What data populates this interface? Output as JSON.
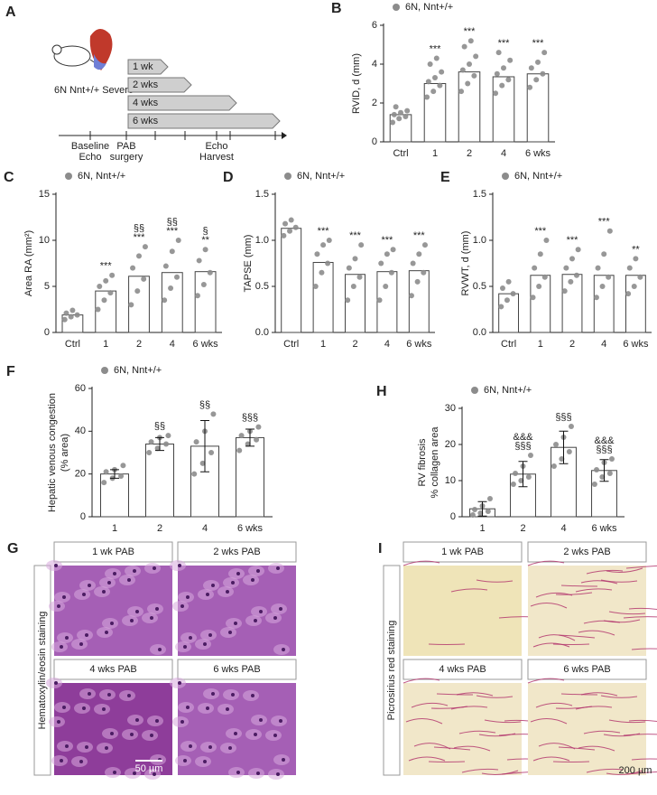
{
  "diagram": {
    "panel": "A",
    "group": "6N Nnt+/+ Severe",
    "durations": [
      "1 wk",
      "2 wks",
      "4 wks",
      "6 wks"
    ],
    "timeline": [
      [
        "Baseline",
        "Echo"
      ],
      [
        "PAB",
        "surgery"
      ],
      [
        "Echo",
        "Harvest"
      ]
    ]
  },
  "chart_data": [
    {
      "type": "bar",
      "panel": "B",
      "legend": "6N, Nnt+/+",
      "ylabel": [
        "RVID, d (mm)"
      ],
      "categories": [
        "Ctrl",
        "1",
        "2",
        "4",
        "6 wks"
      ],
      "values": [
        1.4,
        3.0,
        3.6,
        3.35,
        3.5
      ],
      "points": [
        [
          1.0,
          1.2,
          1.3,
          1.4,
          1.5,
          1.6,
          1.8
        ],
        [
          2.3,
          2.6,
          2.9,
          3.1,
          3.3,
          3.6,
          4.0,
          4.3
        ],
        [
          2.6,
          3.0,
          3.4,
          3.7,
          4.0,
          4.4,
          4.9,
          5.2
        ],
        [
          2.5,
          2.9,
          3.2,
          3.5,
          3.8,
          4.2,
          4.6
        ],
        [
          2.8,
          3.2,
          3.5,
          3.8,
          4.1,
          4.6
        ]
      ],
      "sig": [
        [
          null,
          "***",
          "***",
          "***",
          "***"
        ]
      ],
      "ylim": [
        0,
        6
      ],
      "yticks": [
        0,
        2,
        4,
        6
      ],
      "color": "#8c8c8c"
    },
    {
      "type": "bar",
      "panel": "C",
      "legend": "6N, Nnt+/+",
      "ylabel": [
        "Area RA (mm²)"
      ],
      "categories": [
        "Ctrl",
        "1",
        "2",
        "4",
        "6 wks"
      ],
      "values": [
        1.9,
        4.5,
        6.1,
        6.5,
        6.6
      ],
      "points": [
        [
          1.4,
          1.7,
          1.9,
          2.1,
          2.4
        ],
        [
          2.5,
          3.5,
          4.3,
          5.0,
          5.6,
          6.2
        ],
        [
          3.0,
          4.5,
          5.8,
          7.0,
          8.3,
          9.3
        ],
        [
          3.5,
          4.8,
          6.0,
          7.2,
          8.8,
          10.0
        ],
        [
          4.0,
          5.2,
          6.5,
          7.8,
          9.0
        ]
      ],
      "sig": [
        [
          null,
          null,
          "§§",
          "§§",
          "§"
        ],
        [
          null,
          "***",
          "***",
          "***",
          "**"
        ]
      ],
      "ylim": [
        0,
        15
      ],
      "yticks": [
        0,
        5,
        10,
        15
      ],
      "color": "#8c8c8c"
    },
    {
      "type": "bar",
      "panel": "D",
      "legend": "6N, Nnt+/+",
      "ylabel": [
        "TAPSE (mm)"
      ],
      "categories": [
        "Ctrl",
        "1",
        "2",
        "4",
        "6 wks"
      ],
      "values": [
        1.13,
        0.76,
        0.63,
        0.66,
        0.67
      ],
      "points": [
        [
          1.05,
          1.1,
          1.14,
          1.18,
          1.22
        ],
        [
          0.5,
          0.65,
          0.75,
          0.85,
          0.95,
          1.0
        ],
        [
          0.35,
          0.5,
          0.6,
          0.7,
          0.8,
          0.95
        ],
        [
          0.35,
          0.5,
          0.65,
          0.75,
          0.85,
          0.9
        ],
        [
          0.4,
          0.55,
          0.65,
          0.75,
          0.85,
          0.95
        ]
      ],
      "sig": [
        [
          null,
          "***",
          "***",
          "***",
          "***"
        ]
      ],
      "ylim": [
        0,
        1.5
      ],
      "yticks": [
        {
          "value": 0,
          "label": "0.0"
        },
        {
          "value": 0.5,
          "label": "0.5"
        },
        {
          "value": 1,
          "label": "1.0"
        },
        {
          "value": 1.5,
          "label": "1.5"
        }
      ],
      "color": "#8c8c8c"
    },
    {
      "type": "bar",
      "panel": "E",
      "legend": "6N, Nnt+/+",
      "ylabel": [
        "RVWT, d (mm)"
      ],
      "categories": [
        "Ctrl",
        "1",
        "2",
        "4",
        "6 wks"
      ],
      "values": [
        0.42,
        0.62,
        0.63,
        0.62,
        0.62
      ],
      "points": [
        [
          0.28,
          0.35,
          0.42,
          0.48,
          0.55
        ],
        [
          0.38,
          0.5,
          0.6,
          0.7,
          0.85,
          1.0
        ],
        [
          0.45,
          0.55,
          0.62,
          0.7,
          0.8,
          0.9
        ],
        [
          0.38,
          0.5,
          0.6,
          0.7,
          0.85,
          1.1
        ],
        [
          0.42,
          0.5,
          0.6,
          0.7,
          0.8
        ]
      ],
      "sig": [
        [
          null,
          "***",
          "***",
          "***",
          "**"
        ]
      ],
      "ylim": [
        0,
        1.5
      ],
      "yticks": [
        {
          "value": 0,
          "label": "0.0"
        },
        {
          "value": 0.5,
          "label": "0.5"
        },
        {
          "value": 1,
          "label": "1.0"
        },
        {
          "value": 1.5,
          "label": "1.5"
        }
      ],
      "color": "#8c8c8c"
    },
    {
      "type": "bar",
      "panel": "F",
      "legend": "6N, Nnt+/+",
      "ylabel": [
        "Hepatic venous congestion",
        "(% area)"
      ],
      "categories": [
        "1",
        "2",
        "4",
        "6 wks"
      ],
      "values": [
        20,
        34,
        33,
        37
      ],
      "errors": [
        2,
        3,
        12,
        4
      ],
      "points": [
        [
          16,
          18,
          19,
          21,
          22,
          24
        ],
        [
          30,
          32,
          34,
          35,
          37,
          38
        ],
        [
          20,
          25,
          30,
          35,
          40,
          48
        ],
        [
          31,
          34,
          36,
          38,
          40,
          42
        ]
      ],
      "sig": [
        [
          null,
          "§§",
          "§§",
          "§§§"
        ]
      ],
      "ylim": [
        0,
        60
      ],
      "yticks": [
        0,
        20,
        40,
        60
      ],
      "color": "#8c8c8c"
    },
    {
      "type": "bar",
      "panel": "H",
      "legend": "6N, Nnt+/+",
      "ylabel": [
        "RV fibrosis",
        "% collagen area"
      ],
      "categories": [
        "1",
        "2",
        "4",
        "6 wks"
      ],
      "values": [
        2.2,
        11.8,
        19.2,
        12.8
      ],
      "errors": [
        2,
        3.5,
        4.5,
        3
      ],
      "points": [
        [
          0.5,
          1,
          1.5,
          2,
          3,
          5
        ],
        [
          9,
          10,
          11,
          12,
          14,
          17
        ],
        [
          14,
          16,
          18,
          20,
          22,
          25
        ],
        [
          9,
          11,
          12,
          13,
          15,
          16
        ]
      ],
      "sig": [
        [
          null,
          "&&&",
          null,
          "&&&"
        ],
        [
          null,
          "§§§",
          "§§§",
          "§§§"
        ]
      ],
      "ylim": [
        0,
        30
      ],
      "yticks": [
        0,
        10,
        20,
        30
      ],
      "color": "#8c8c8c"
    }
  ],
  "histology": [
    {
      "panel": "G",
      "stain": "Hematoxylin/eosin staining",
      "tiles": [
        "1 wk PAB",
        "2 wks PAB",
        "4 wks PAB",
        "6 wks PAB"
      ],
      "scale": "50 µm"
    },
    {
      "panel": "I",
      "stain": "Picrosirius red staining",
      "tiles": [
        "1 wk PAB",
        "2 wks PAB",
        "4 wks PAB",
        "6 wks PAB"
      ],
      "scale": "200 µm"
    }
  ]
}
